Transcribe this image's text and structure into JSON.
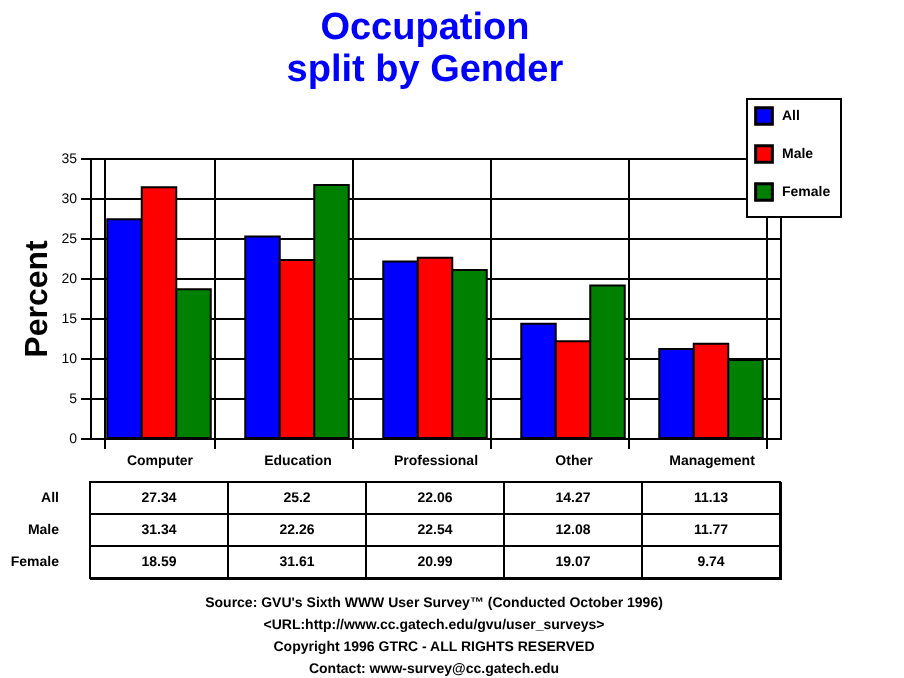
{
  "chart_data": {
    "type": "bar",
    "title": [
      "Occupation",
      "split by Gender"
    ],
    "ylabel": "Percent",
    "categories": [
      "Computer",
      "Education",
      "Professional",
      "Other",
      "Management"
    ],
    "series": [
      {
        "name": "All",
        "color": "#0000ff",
        "values": [
          27.34,
          25.2,
          22.06,
          14.27,
          11.13
        ]
      },
      {
        "name": "Male",
        "color": "#ff0000",
        "values": [
          31.34,
          22.26,
          22.54,
          12.08,
          11.77
        ]
      },
      {
        "name": "Female",
        "color": "#008000",
        "values": [
          18.59,
          31.61,
          20.99,
          19.07,
          9.74
        ]
      }
    ],
    "ylim": [
      0,
      35
    ],
    "yticks": [
      0,
      5,
      10,
      15,
      20,
      25,
      30,
      35
    ],
    "grid": true,
    "legend": "top right",
    "data_labels": true,
    "annotations": [
      "Source: GVU's Sixth WWW User Survey™ (Conducted October 1996)",
      "<URL:http://www.cc.gatech.edu/gvu/user_surveys>",
      "Copyright 1996 GTRC - ALL RIGHTS RESERVED",
      "Contact: www-survey@cc.gatech.edu"
    ]
  }
}
